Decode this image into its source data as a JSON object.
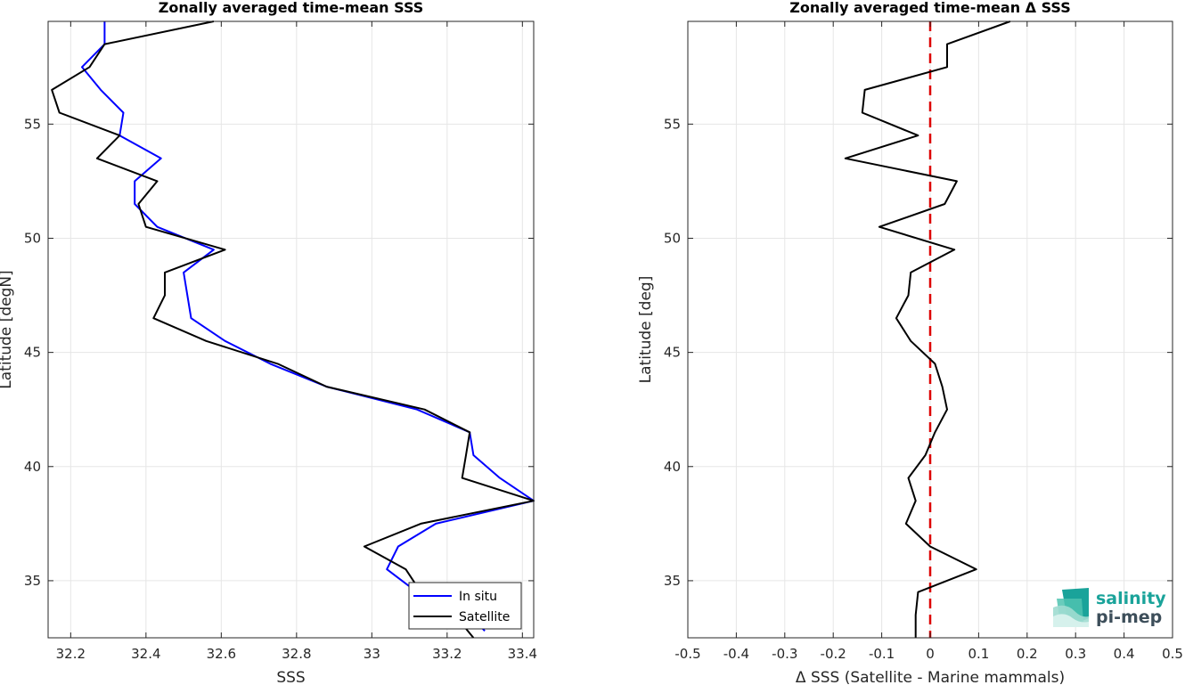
{
  "chart_data": [
    {
      "type": "line",
      "title": "Zonally averaged time-mean SSS",
      "xlabel": "SSS",
      "ylabel": "Latitude [degN]",
      "xlim": [
        32.14,
        33.43
      ],
      "ylim": [
        32.5,
        59.5
      ],
      "xticks": [
        32.2,
        32.4,
        32.6,
        32.8,
        33,
        33.2,
        33.4
      ],
      "xtick_labels": [
        "32.2",
        "32.4",
        "32.6",
        "32.8",
        "33",
        "33.2",
        "33.4"
      ],
      "yticks": [
        35,
        40,
        45,
        50,
        55
      ],
      "ytick_labels": [
        "35",
        "40",
        "45",
        "50",
        "55"
      ],
      "grid": true,
      "legend": "bottom-right",
      "series": [
        {
          "name": "In situ",
          "color": "#0000ff",
          "x": [
            33.3,
            33.26,
            33.12,
            33.04,
            33.07,
            33.17,
            33.43,
            33.34,
            33.27,
            33.26,
            33.12,
            32.88,
            32.73,
            32.61,
            32.52,
            32.5,
            32.58,
            32.43,
            32.37,
            32.37,
            32.44,
            32.33,
            32.34,
            32.28,
            32.23,
            32.29,
            32.29
          ],
          "y": [
            32.8,
            33.5,
            34.5,
            35.5,
            36.5,
            37.5,
            38.5,
            39.5,
            40.5,
            41.5,
            42.5,
            43.5,
            44.5,
            45.5,
            46.5,
            48.5,
            49.5,
            50.5,
            51.5,
            52.5,
            53.5,
            54.5,
            55.5,
            56.5,
            57.5,
            58.5,
            59.5
          ]
        },
        {
          "name": "Satellite",
          "color": "#000000",
          "x": [
            33.27,
            33.22,
            33.13,
            33.09,
            32.98,
            33.13,
            33.43,
            33.24,
            33.25,
            33.26,
            33.14,
            32.88,
            32.75,
            32.56,
            32.42,
            32.45,
            32.45,
            32.61,
            32.4,
            32.38,
            32.43,
            32.27,
            32.33,
            32.17,
            32.15,
            32.25,
            32.29,
            32.58
          ],
          "y": [
            32.5,
            33.5,
            34.5,
            35.5,
            36.5,
            37.5,
            38.5,
            39.5,
            40.5,
            41.5,
            42.5,
            43.5,
            44.5,
            45.5,
            46.5,
            47.5,
            48.5,
            49.5,
            50.5,
            51.5,
            52.5,
            53.5,
            54.5,
            55.5,
            56.5,
            57.5,
            58.5,
            59.5
          ]
        }
      ]
    },
    {
      "type": "line",
      "title": "Zonally averaged time-mean Δ SSS",
      "xlabel": "Δ SSS (Satellite - Marine mammals)",
      "ylabel": "Latitude [deg]",
      "xlim": [
        -0.5,
        0.5
      ],
      "ylim": [
        32.5,
        59.5
      ],
      "xticks": [
        -0.5,
        -0.4,
        -0.3,
        -0.2,
        -0.1,
        0,
        0.1,
        0.2,
        0.3,
        0.4,
        0.5
      ],
      "xtick_labels": [
        "-0.5",
        "-0.4",
        "-0.3",
        "-0.2",
        "-0.1",
        "0",
        "0.1",
        "0.2",
        "0.3",
        "0.4",
        "0.5"
      ],
      "yticks": [
        35,
        40,
        45,
        50,
        55
      ],
      "ytick_labels": [
        "35",
        "40",
        "45",
        "50",
        "55"
      ],
      "grid": true,
      "reference_line": {
        "x": 0,
        "color": "#dd0000",
        "style": "dashed"
      },
      "series": [
        {
          "color": "#000000",
          "x": [
            -0.03,
            -0.03,
            -0.025,
            0.095,
            0.0,
            -0.05,
            -0.03,
            -0.045,
            -0.01,
            0.01,
            0.035,
            0.025,
            0.01,
            -0.04,
            -0.07,
            -0.045,
            -0.04,
            0.05,
            -0.105,
            0.03,
            0.055,
            -0.175,
            -0.025,
            -0.14,
            -0.135,
            0.035,
            0.035,
            0.165
          ],
          "y": [
            32.5,
            33.5,
            34.5,
            35.5,
            36.5,
            37.5,
            38.5,
            39.5,
            40.5,
            41.5,
            42.5,
            43.5,
            44.5,
            45.5,
            46.5,
            47.5,
            48.5,
            49.5,
            50.5,
            51.5,
            52.5,
            53.5,
            54.5,
            55.5,
            56.5,
            57.5,
            58.5,
            59.5
          ]
        }
      ]
    }
  ],
  "logo": {
    "line1": "salinity",
    "line2": "pi-mep"
  }
}
